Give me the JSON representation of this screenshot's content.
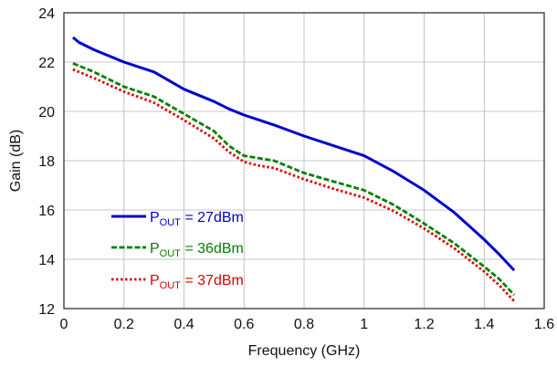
{
  "chart_data": {
    "type": "line",
    "title": "",
    "xlabel": "Frequency (GHz)",
    "ylabel": "Gain (dB)",
    "xlim": [
      0,
      1.6
    ],
    "ylim": [
      12,
      24
    ],
    "xticks": [
      "0",
      "0.2",
      "0.4",
      "0.6",
      "0.8",
      "1",
      "1.2",
      "1.4",
      "1.6"
    ],
    "yticks": [
      "12",
      "14",
      "16",
      "18",
      "20",
      "22",
      "24"
    ],
    "grid": true,
    "legend_position": "bottom-left",
    "series": [
      {
        "name": "P",
        "name_sub": "OUT",
        "name_rest": " = 27dBm",
        "color": "#0000cc",
        "style": "solid",
        "x": [
          0.03,
          0.05,
          0.1,
          0.2,
          0.3,
          0.4,
          0.5,
          0.55,
          0.6,
          0.7,
          0.8,
          0.9,
          1.0,
          1.1,
          1.2,
          1.3,
          1.4,
          1.45,
          1.5
        ],
        "y": [
          23.0,
          22.8,
          22.5,
          22.0,
          21.6,
          20.9,
          20.4,
          20.1,
          19.85,
          19.45,
          19.0,
          18.6,
          18.2,
          17.55,
          16.8,
          15.9,
          14.8,
          14.2,
          13.55
        ]
      },
      {
        "name": "P",
        "name_sub": "OUT",
        "name_rest": " = 36dBm",
        "color": "#008000",
        "style": "dashed",
        "x": [
          0.03,
          0.1,
          0.2,
          0.3,
          0.4,
          0.5,
          0.55,
          0.6,
          0.65,
          0.7,
          0.8,
          0.9,
          1.0,
          1.1,
          1.2,
          1.3,
          1.4,
          1.45,
          1.5
        ],
        "y": [
          21.95,
          21.6,
          21.0,
          20.6,
          19.9,
          19.2,
          18.6,
          18.2,
          18.1,
          18.0,
          17.5,
          17.15,
          16.8,
          16.2,
          15.45,
          14.65,
          13.7,
          13.2,
          12.55
        ]
      },
      {
        "name": "P",
        "name_sub": "OUT",
        "name_rest": " = 37dBm",
        "color": "#dd0000",
        "style": "dotted",
        "x": [
          0.03,
          0.1,
          0.2,
          0.3,
          0.4,
          0.5,
          0.55,
          0.6,
          0.65,
          0.7,
          0.8,
          0.9,
          1.0,
          1.1,
          1.2,
          1.3,
          1.4,
          1.45,
          1.5
        ],
        "y": [
          21.7,
          21.35,
          20.8,
          20.35,
          19.65,
          18.9,
          18.35,
          17.95,
          17.8,
          17.7,
          17.25,
          16.85,
          16.5,
          15.95,
          15.25,
          14.45,
          13.5,
          12.95,
          12.3
        ]
      }
    ]
  }
}
